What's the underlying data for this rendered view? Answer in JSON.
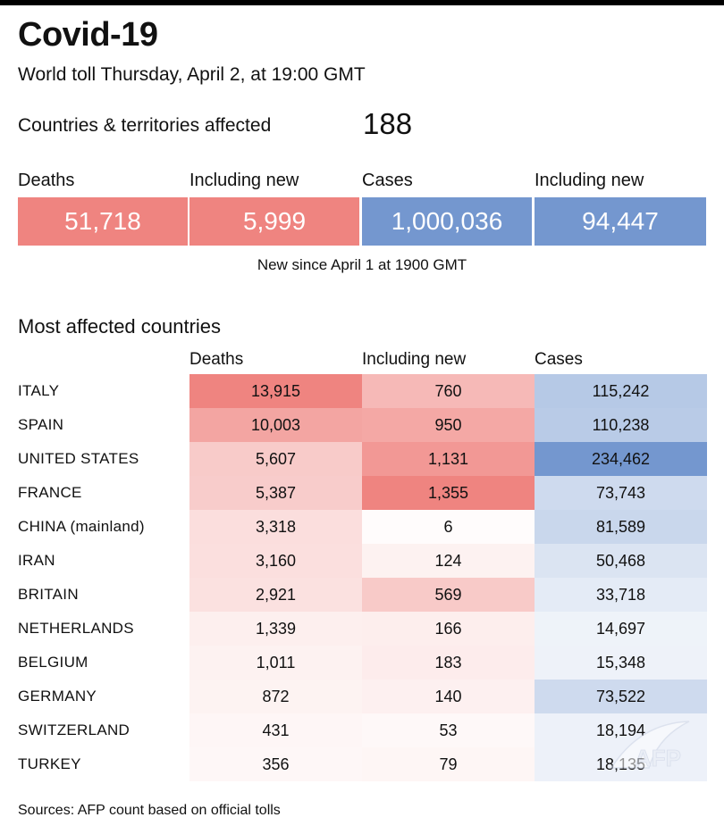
{
  "title": "Covid-19",
  "subtitle": "World toll Thursday, April 2, at 19:00 GMT",
  "affected": {
    "label": "Countries & territories affected",
    "value": "188"
  },
  "totals": [
    {
      "label": "Deaths",
      "value": "51,718",
      "color": "#ef8480"
    },
    {
      "label": "Including new",
      "value": "5,999",
      "color": "#ef8480"
    },
    {
      "label": "Cases",
      "value": "1,000,036",
      "color": "#7497cf"
    },
    {
      "label": "Including new",
      "value": "94,447",
      "color": "#7497cf"
    }
  ],
  "new_since_note": "New since  April 1 at 1900 GMT",
  "section_title": "Most affected countries",
  "chart_data": {
    "type": "table",
    "columns": [
      "Deaths",
      "Including new",
      "Cases"
    ],
    "rows": [
      {
        "country": "ITALY",
        "deaths": 13915,
        "new_deaths": 760,
        "cases": 115242,
        "deaths_text": "13,915",
        "new_text": "760",
        "cases_text": "115,242"
      },
      {
        "country": "SPAIN",
        "deaths": 10003,
        "new_deaths": 950,
        "cases": 110238,
        "deaths_text": "10,003",
        "new_text": "950",
        "cases_text": "110,238"
      },
      {
        "country": "UNITED STATES",
        "deaths": 5607,
        "new_deaths": 1131,
        "cases": 234462,
        "deaths_text": "5,607",
        "new_text": "1,131",
        "cases_text": "234,462"
      },
      {
        "country": "FRANCE",
        "deaths": 5387,
        "new_deaths": 1355,
        "cases": 73743,
        "deaths_text": "5,387",
        "new_text": "1,355",
        "cases_text": "73,743"
      },
      {
        "country": "CHINA (mainland)",
        "deaths": 3318,
        "new_deaths": 6,
        "cases": 81589,
        "deaths_text": "3,318",
        "new_text": "6",
        "cases_text": "81,589"
      },
      {
        "country": "IRAN",
        "deaths": 3160,
        "new_deaths": 124,
        "cases": 50468,
        "deaths_text": "3,160",
        "new_text": "124",
        "cases_text": "50,468"
      },
      {
        "country": "BRITAIN",
        "deaths": 2921,
        "new_deaths": 569,
        "cases": 33718,
        "deaths_text": "2,921",
        "new_text": "569",
        "cases_text": "33,718"
      },
      {
        "country": "NETHERLANDS",
        "deaths": 1339,
        "new_deaths": 166,
        "cases": 14697,
        "deaths_text": "1,339",
        "new_text": "166",
        "cases_text": "14,697"
      },
      {
        "country": "BELGIUM",
        "deaths": 1011,
        "new_deaths": 183,
        "cases": 15348,
        "deaths_text": "1,011",
        "new_text": "183",
        "cases_text": "15,348"
      },
      {
        "country": "GERMANY",
        "deaths": 872,
        "new_deaths": 140,
        "cases": 73522,
        "deaths_text": "872",
        "new_text": "140",
        "cases_text": "73,522"
      },
      {
        "country": "SWITZERLAND",
        "deaths": 431,
        "new_deaths": 53,
        "cases": 18194,
        "deaths_text": "431",
        "new_text": "53",
        "cases_text": "18,194"
      },
      {
        "country": "TURKEY",
        "deaths": 356,
        "new_deaths": 79,
        "cases": 18135,
        "deaths_text": "356",
        "new_text": "79",
        "cases_text": "18,135"
      }
    ],
    "colors": {
      "deaths_scale": "#ef8480",
      "cases_scale": "#7497cf"
    }
  },
  "source": "Sources: AFP count based on official tolls",
  "watermark_icon": "afp-logo-watermark"
}
